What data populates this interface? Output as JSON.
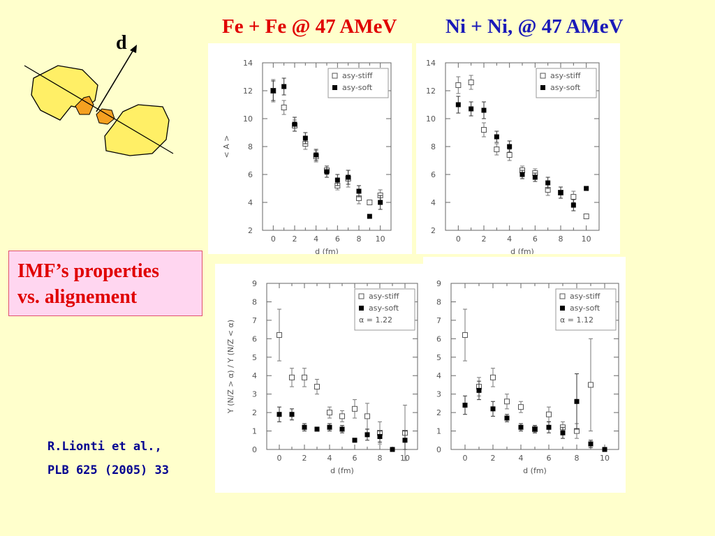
{
  "header": {
    "title_fe": "Fe + Fe @ 47 AMeV",
    "title_ni": "Ni + Ni, @ 47 AMeV"
  },
  "diagram": {
    "label": "d",
    "colors": {
      "fragment_large": "#ffef66",
      "fragment_small": "#f5a020"
    }
  },
  "callout": {
    "line1": "IMF’s  properties",
    "line2": "vs. alignement"
  },
  "reference": {
    "line1": "R.Lionti et al.,",
    "line2": "PLB 625 (2005) 33"
  },
  "chart_data": [
    {
      "type": "scatter",
      "title": "",
      "xlabel": "d (fm)",
      "ylabel": "< A >",
      "xlim": [
        -1,
        11
      ],
      "ylim": [
        2,
        14
      ],
      "xticks": [
        0,
        2,
        4,
        6,
        8,
        10
      ],
      "yticks": [
        2,
        4,
        6,
        8,
        10,
        12,
        14
      ],
      "legend": [
        "asy-stiff",
        "asy-soft"
      ],
      "legend_position": "top-right",
      "series": [
        {
          "name": "asy-stiff",
          "marker": "open-square",
          "x": [
            0,
            1,
            2,
            3,
            4,
            5,
            6,
            7,
            8,
            9,
            10
          ],
          "values": [
            12.0,
            10.8,
            9.5,
            8.2,
            7.3,
            6.3,
            5.2,
            5.7,
            4.3,
            4.0,
            4.5
          ],
          "errors": [
            0.8,
            0.5,
            0.4,
            0.4,
            0.4,
            0.3,
            0.3,
            0.6,
            0.4,
            0,
            0.4
          ]
        },
        {
          "name": "asy-soft",
          "marker": "filled-square",
          "x": [
            0,
            1,
            2,
            3,
            4,
            5,
            6,
            7,
            8,
            9,
            10
          ],
          "values": [
            12.0,
            12.3,
            9.6,
            8.6,
            7.4,
            6.2,
            5.6,
            5.8,
            4.8,
            3.0,
            4.0
          ],
          "errors": [
            0.7,
            0.6,
            0.5,
            0.4,
            0.4,
            0.4,
            0.4,
            0.5,
            0.4,
            0,
            0.5
          ]
        }
      ]
    },
    {
      "type": "scatter",
      "title": "",
      "xlabel": "d (fm)",
      "ylabel": "",
      "xlim": [
        -1,
        11
      ],
      "ylim": [
        2,
        14
      ],
      "xticks": [
        0,
        2,
        4,
        6,
        8,
        10
      ],
      "yticks": [
        2,
        4,
        6,
        8,
        10,
        12,
        14
      ],
      "legend": [
        "asy-stiff",
        "asy-soft"
      ],
      "legend_position": "top-right",
      "series": [
        {
          "name": "asy-stiff",
          "marker": "open-square",
          "x": [
            0,
            1,
            2,
            3,
            4,
            5,
            6,
            7,
            8,
            9,
            10
          ],
          "values": [
            12.4,
            12.6,
            9.2,
            7.8,
            7.4,
            6.3,
            6.1,
            4.9,
            4.7,
            4.4,
            3.0
          ],
          "errors": [
            0.6,
            0.5,
            0.5,
            0.4,
            0.4,
            0.3,
            0.3,
            0.4,
            0.4,
            0.4,
            0
          ]
        },
        {
          "name": "asy-soft",
          "marker": "filled-square",
          "x": [
            0,
            1,
            2,
            3,
            4,
            5,
            6,
            7,
            8,
            9,
            10
          ],
          "values": [
            11.0,
            10.7,
            10.6,
            8.7,
            8.0,
            6.0,
            5.8,
            5.4,
            4.7,
            3.8,
            5.0
          ],
          "errors": [
            0.6,
            0.5,
            0.6,
            0.4,
            0.4,
            0.3,
            0.3,
            0.4,
            0.4,
            0.4,
            0
          ]
        }
      ]
    },
    {
      "type": "scatter",
      "title": "",
      "xlabel": "d (fm)",
      "ylabel": "Y (N/Z > α) / Y (N/Z < α)",
      "xlim": [
        -1,
        11
      ],
      "ylim": [
        0,
        9
      ],
      "xticks": [
        0,
        2,
        4,
        6,
        8,
        10
      ],
      "yticks": [
        0,
        1,
        2,
        3,
        4,
        5,
        6,
        7,
        8,
        9
      ],
      "legend": [
        "asy-stiff",
        "asy-soft",
        "α = 1.22"
      ],
      "legend_position": "top-right",
      "series": [
        {
          "name": "asy-stiff",
          "marker": "open-square",
          "x": [
            0,
            1,
            2,
            3,
            4,
            5,
            6,
            7,
            8,
            10
          ],
          "values": [
            6.2,
            3.9,
            3.9,
            3.4,
            2.0,
            1.8,
            2.2,
            1.8,
            0.9,
            0.9
          ],
          "errors": [
            1.4,
            0.5,
            0.5,
            0.4,
            0.3,
            0.3,
            0.5,
            0.7,
            0.6,
            1.5
          ]
        },
        {
          "name": "asy-soft",
          "marker": "filled-square",
          "x": [
            0,
            1,
            2,
            3,
            4,
            5,
            6,
            7,
            8,
            9,
            10
          ],
          "values": [
            1.9,
            1.9,
            1.2,
            1.1,
            1.2,
            1.1,
            0.5,
            0.8,
            0.7,
            0.0,
            0.5
          ],
          "errors": [
            0.4,
            0.3,
            0.2,
            0.1,
            0.2,
            0.2,
            0.1,
            0.3,
            0.3,
            0,
            0.5
          ]
        }
      ]
    },
    {
      "type": "scatter",
      "title": "",
      "xlabel": "d (fm)",
      "ylabel": "",
      "xlim": [
        -1,
        11
      ],
      "ylim": [
        0,
        9
      ],
      "xticks": [
        0,
        2,
        4,
        6,
        8,
        10
      ],
      "yticks": [
        0,
        1,
        2,
        3,
        4,
        5,
        6,
        7,
        8,
        9
      ],
      "legend": [
        "asy-stiff",
        "asy-soft",
        "α = 1.12"
      ],
      "legend_position": "top-right",
      "series": [
        {
          "name": "asy-stiff",
          "marker": "open-square",
          "x": [
            0,
            1,
            2,
            3,
            4,
            5,
            6,
            7,
            8,
            9
          ],
          "values": [
            6.2,
            3.4,
            3.9,
            2.6,
            2.3,
            1.1,
            1.9,
            1.2,
            1.0,
            3.5
          ],
          "errors": [
            1.4,
            0.5,
            0.5,
            0.4,
            0.3,
            0.2,
            0.4,
            0.3,
            0.4,
            2.5
          ]
        },
        {
          "name": "asy-soft",
          "marker": "filled-square",
          "x": [
            0,
            1,
            2,
            3,
            4,
            5,
            6,
            7,
            8,
            9,
            10
          ],
          "values": [
            2.4,
            3.2,
            2.2,
            1.7,
            1.2,
            1.1,
            1.2,
            0.9,
            2.6,
            0.3,
            0.0
          ],
          "errors": [
            0.5,
            0.5,
            0.4,
            0.2,
            0.2,
            0.2,
            0.3,
            0.3,
            1.5,
            0.2,
            0
          ]
        }
      ]
    }
  ]
}
